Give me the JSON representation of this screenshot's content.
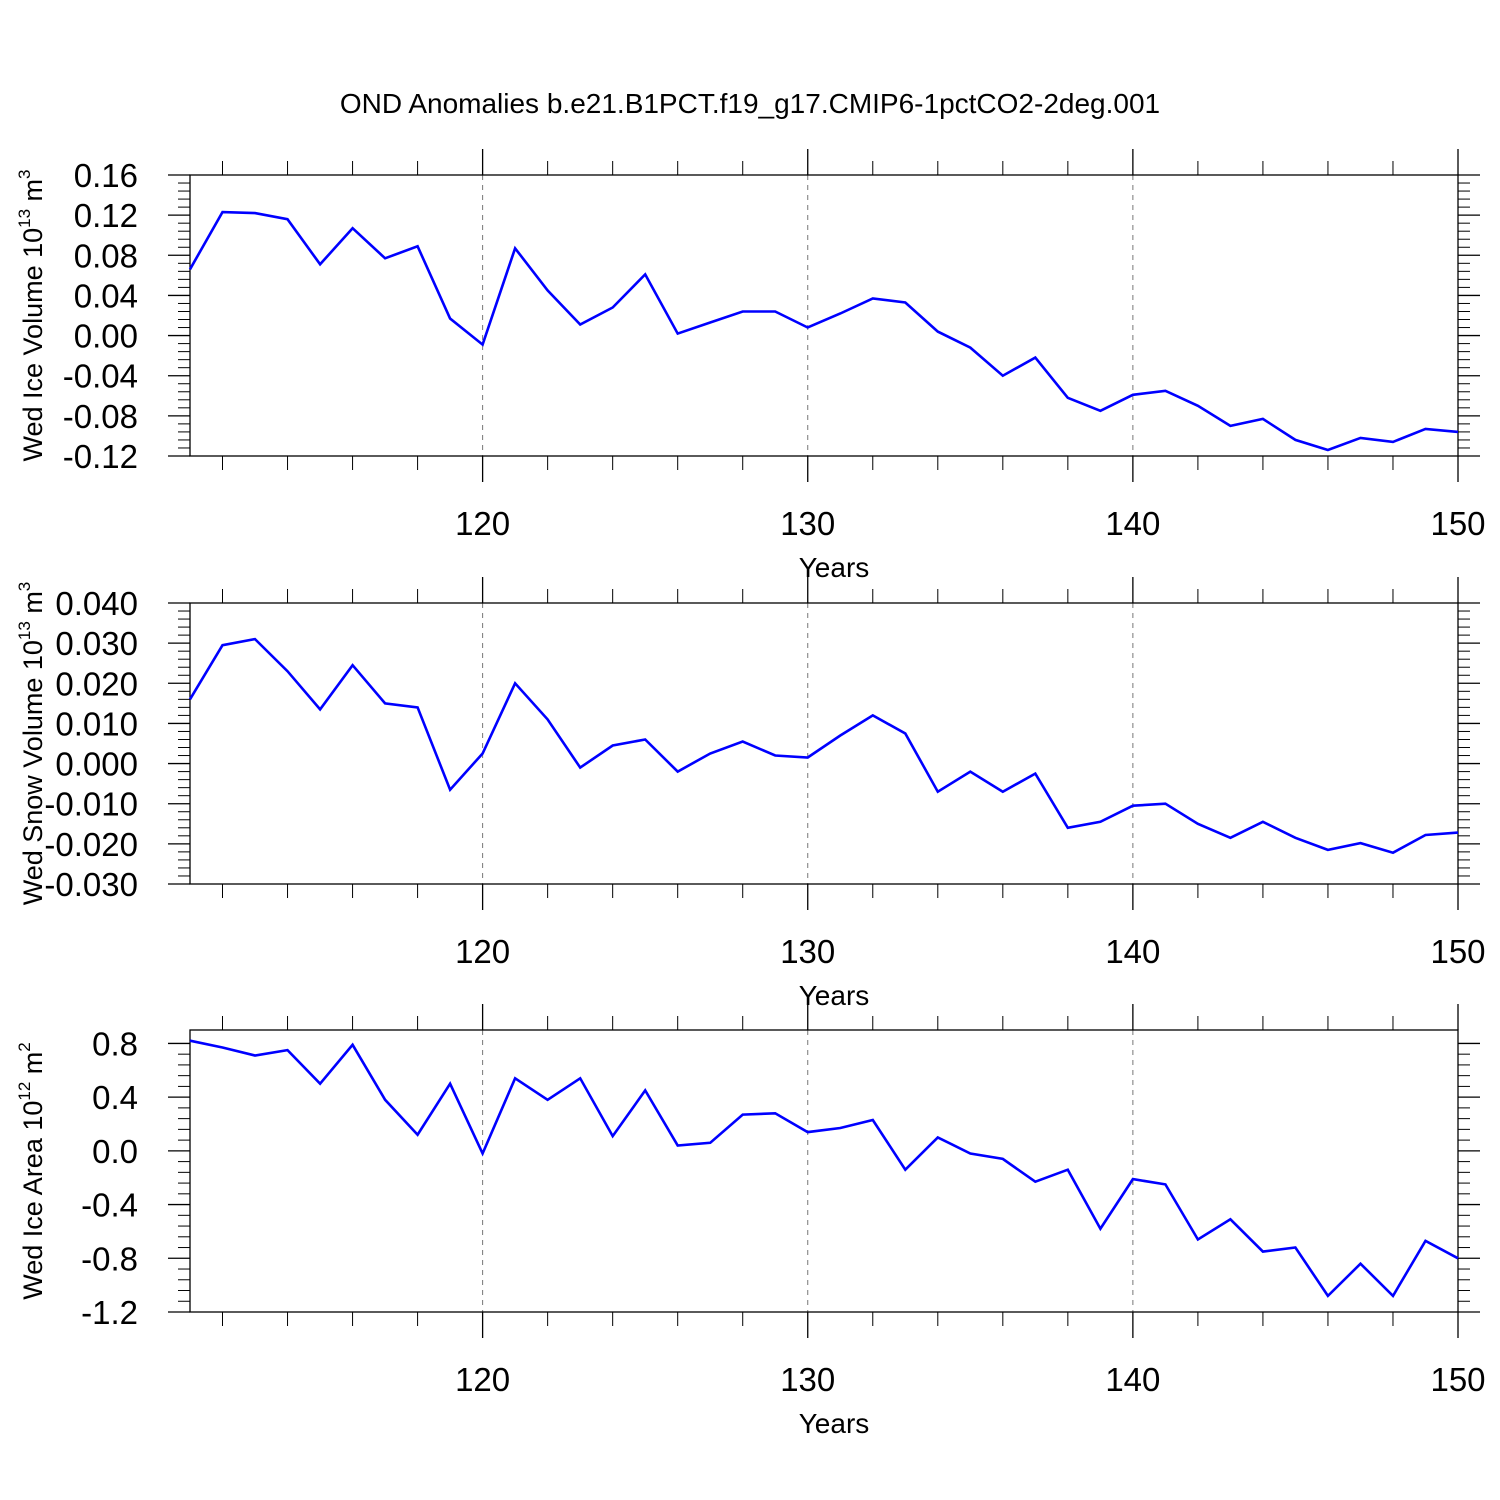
{
  "title": "OND Anomalies b.e21.B1PCT.f19_g17.CMIP6-1pctCO2-2deg.001",
  "colors": {
    "line": "#0000ff",
    "axis": "#000000",
    "grid": "#777777"
  },
  "chart_data": [
    {
      "type": "line",
      "ylabel": {
        "text": "Wed Ice Volume 10",
        "sup": "13",
        "unit": " m",
        "unit_sup": "3"
      },
      "xlabel": "Years",
      "xlim": [
        111,
        150
      ],
      "ylim": [
        -0.12,
        0.16
      ],
      "xticks": [
        120,
        130,
        140,
        150
      ],
      "xtick_labels": [
        "120",
        "130",
        "140",
        "150"
      ],
      "yticks": [
        -0.12,
        -0.08,
        -0.04,
        0.0,
        0.04,
        0.08,
        0.12,
        0.16
      ],
      "ytick_labels": [
        "-0.12",
        "-0.08",
        "-0.04",
        "0.00",
        "0.04",
        "0.08",
        "0.12",
        "0.16"
      ],
      "grid_x": [
        120,
        130,
        140
      ],
      "x": [
        111,
        112,
        113,
        114,
        115,
        116,
        117,
        118,
        119,
        120,
        121,
        122,
        123,
        124,
        125,
        126,
        127,
        128,
        129,
        130,
        131,
        132,
        133,
        134,
        135,
        136,
        137,
        138,
        139,
        140,
        141,
        142,
        143,
        144,
        145,
        146,
        147,
        148,
        149,
        150
      ],
      "values": [
        0.066,
        0.123,
        0.122,
        0.116,
        0.071,
        0.107,
        0.077,
        0.089,
        0.017,
        -0.009,
        0.087,
        0.045,
        0.011,
        0.028,
        0.061,
        0.002,
        0.013,
        0.024,
        0.024,
        0.008,
        0.022,
        0.037,
        0.033,
        0.004,
        -0.012,
        -0.04,
        -0.022,
        -0.062,
        -0.075,
        -0.059,
        -0.055,
        -0.07,
        -0.09,
        -0.083,
        -0.104,
        -0.114,
        -0.102,
        -0.106,
        -0.093,
        -0.096
      ]
    },
    {
      "type": "line",
      "ylabel": {
        "text": "Wed Snow Volume 10",
        "sup": "13",
        "unit": " m",
        "unit_sup": "3"
      },
      "xlabel": "Years",
      "xlim": [
        111,
        150
      ],
      "ylim": [
        -0.03,
        0.04
      ],
      "xticks": [
        120,
        130,
        140,
        150
      ],
      "xtick_labels": [
        "120",
        "130",
        "140",
        "150"
      ],
      "yticks": [
        -0.03,
        -0.02,
        -0.01,
        0.0,
        0.01,
        0.02,
        0.03,
        0.04
      ],
      "ytick_labels": [
        "-0.030",
        "-0.020",
        "-0.010",
        "0.000",
        "0.010",
        "0.020",
        "0.030",
        "0.040"
      ],
      "grid_x": [
        120,
        130,
        140
      ],
      "x": [
        111,
        112,
        113,
        114,
        115,
        116,
        117,
        118,
        119,
        120,
        121,
        122,
        123,
        124,
        125,
        126,
        127,
        128,
        129,
        130,
        131,
        132,
        133,
        134,
        135,
        136,
        137,
        138,
        139,
        140,
        141,
        142,
        143,
        144,
        145,
        146,
        147,
        148,
        149,
        150
      ],
      "values": [
        0.016,
        0.0295,
        0.031,
        0.023,
        0.0135,
        0.0245,
        0.015,
        0.014,
        -0.0065,
        0.0025,
        0.02,
        0.011,
        -0.001,
        0.0045,
        0.006,
        -0.002,
        0.0025,
        0.0055,
        0.002,
        0.0015,
        0.007,
        0.012,
        0.0075,
        -0.007,
        -0.002,
        -0.007,
        -0.0025,
        -0.016,
        -0.0145,
        -0.0105,
        -0.01,
        -0.015,
        -0.0185,
        -0.0145,
        -0.0185,
        -0.0215,
        -0.0198,
        -0.0222,
        -0.0178,
        -0.0172
      ]
    },
    {
      "type": "line",
      "ylabel": {
        "text": "Wed Ice Area 10",
        "sup": "12",
        "unit": " m",
        "unit_sup": "2"
      },
      "xlabel": "Years",
      "xlim": [
        111,
        150
      ],
      "ylim": [
        -1.2,
        0.9
      ],
      "xticks": [
        120,
        130,
        140,
        150
      ],
      "xtick_labels": [
        "120",
        "130",
        "140",
        "150"
      ],
      "yticks": [
        -1.2,
        -0.8,
        -0.4,
        0.0,
        0.4,
        0.8
      ],
      "ytick_labels": [
        "-1.2",
        "-0.8",
        "-0.4",
        "0.0",
        "0.4",
        "0.8"
      ],
      "grid_x": [
        120,
        130,
        140
      ],
      "x": [
        111,
        112,
        113,
        114,
        115,
        116,
        117,
        118,
        119,
        120,
        121,
        122,
        123,
        124,
        125,
        126,
        127,
        128,
        129,
        130,
        131,
        132,
        133,
        134,
        135,
        136,
        137,
        138,
        139,
        140,
        141,
        142,
        143,
        144,
        145,
        146,
        147,
        148,
        149,
        150
      ],
      "values": [
        0.82,
        0.77,
        0.71,
        0.75,
        0.5,
        0.79,
        0.38,
        0.12,
        0.5,
        -0.02,
        0.54,
        0.38,
        0.54,
        0.11,
        0.45,
        0.04,
        0.06,
        0.27,
        0.28,
        0.14,
        0.17,
        0.23,
        -0.14,
        0.1,
        -0.02,
        -0.06,
        -0.23,
        -0.14,
        -0.58,
        -0.21,
        -0.25,
        -0.66,
        -0.51,
        -0.75,
        -0.72,
        -1.08,
        -0.84,
        -1.08,
        -0.67,
        -0.8
      ]
    }
  ]
}
